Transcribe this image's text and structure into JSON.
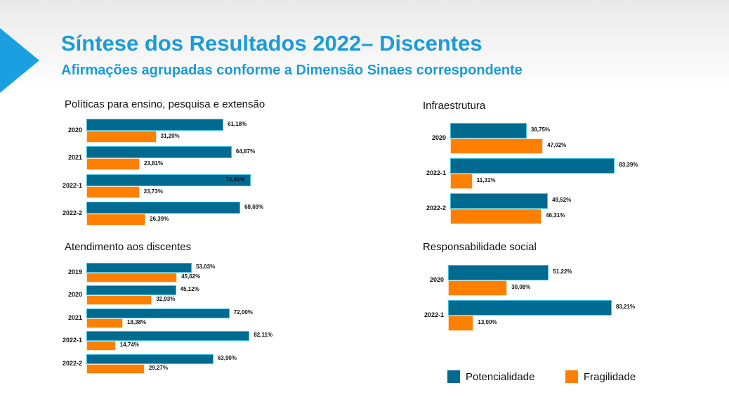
{
  "title": "Síntese dos Resultados 2022– Discentes",
  "subtitle": "Afirmações agrupadas conforme a Dimensão Sinaes correspondente",
  "legend": {
    "potencialidade": "Potencialidade",
    "fragilidade": "Fragilidade",
    "colors": {
      "potencialidade": "#006a90",
      "fragilidade": "#ff7f00"
    }
  },
  "chart_data": [
    {
      "type": "bar",
      "title": "Políticas para ensino, pesquisa e extensão",
      "categories": [
        "2020",
        "2021",
        "2022-1",
        "2022-2"
      ],
      "series": [
        {
          "name": "Potencialidade",
          "values": [
            61.18,
            64.87,
            73.46,
            68.69
          ],
          "labels": [
            "61,18%",
            "64,87%",
            "73,46%",
            "68,69%"
          ]
        },
        {
          "name": "Fragilidade",
          "values": [
            31.2,
            23.81,
            23.73,
            26.39
          ],
          "labels": [
            "31,20%",
            "23,81%",
            "23,73%",
            "26,39%"
          ]
        }
      ]
    },
    {
      "type": "bar",
      "title": "Atendimento aos discentes",
      "categories": [
        "2019",
        "2020",
        "2021",
        "2022-1",
        "2022-2"
      ],
      "series": [
        {
          "name": "Potencialidade",
          "values": [
            53.03,
            45.12,
            72.0,
            82.11,
            63.9
          ],
          "labels": [
            "53,03%",
            "45,12%",
            "72,00%",
            "82,11%",
            "63,90%"
          ]
        },
        {
          "name": "Fragilidade",
          "values": [
            45.62,
            32.93,
            18.38,
            14.74,
            29.27
          ],
          "labels": [
            "45,62%",
            "32,93%",
            "18,38%",
            "14,74%",
            "29,27%"
          ]
        }
      ]
    },
    {
      "type": "bar",
      "title": "Infraestrutura",
      "categories": [
        "2020",
        "2022-1",
        "2022-2"
      ],
      "series": [
        {
          "name": "Potencialidade",
          "values": [
            38.75,
            83.39,
            49.52
          ],
          "labels": [
            "38,75%",
            "83,39%",
            "49,52%"
          ]
        },
        {
          "name": "Fragilidade",
          "values": [
            47.02,
            11.31,
            46.31
          ],
          "labels": [
            "47,02%",
            "11,31%",
            "46,31%"
          ]
        }
      ]
    },
    {
      "type": "bar",
      "title": "Responsabilidade social",
      "categories": [
        "2020",
        "2022-1"
      ],
      "series": [
        {
          "name": "Potencialidade",
          "values": [
            51.22,
            83.21
          ],
          "labels": [
            "51,22%",
            "83,21%"
          ]
        },
        {
          "name": "Fragilidade",
          "values": [
            30.08,
            13.0
          ],
          "labels": [
            "30,08%",
            "13,00%"
          ]
        }
      ]
    }
  ]
}
